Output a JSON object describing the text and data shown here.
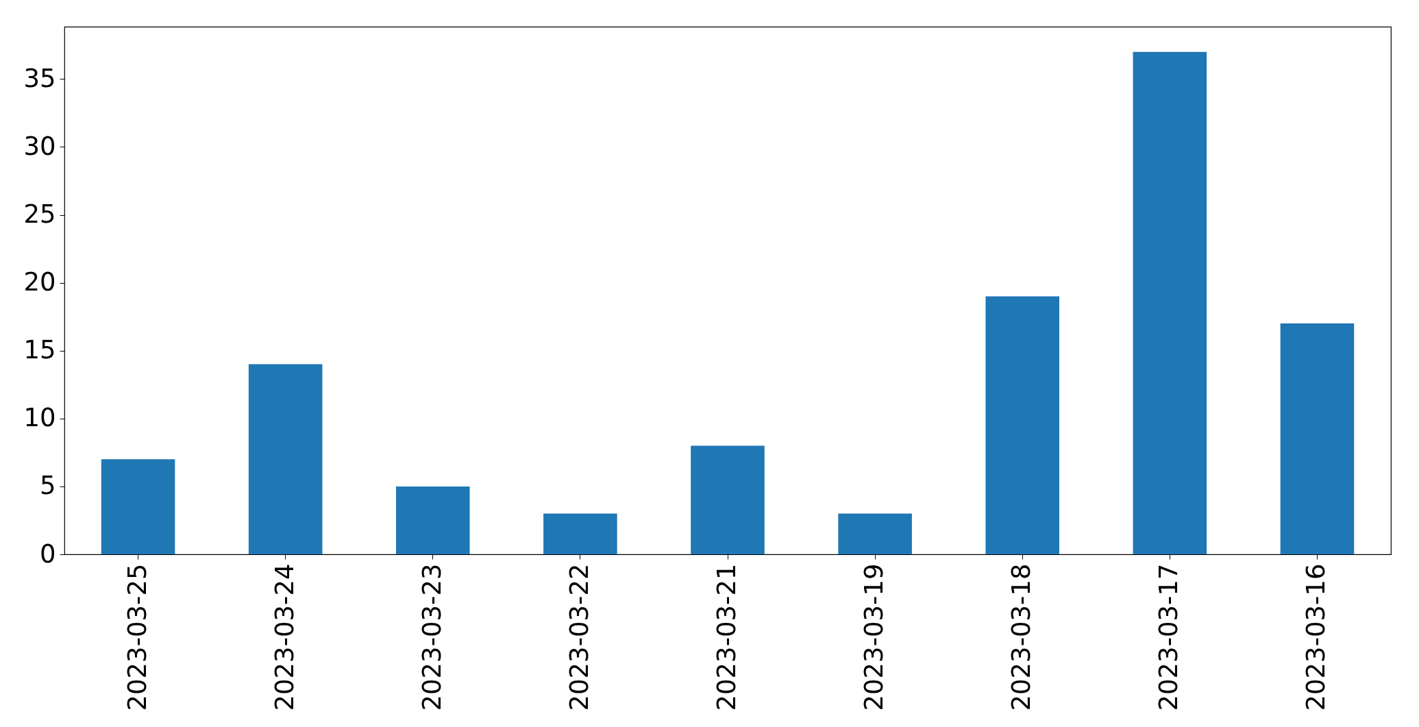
{
  "chart_data": {
    "type": "bar",
    "categories": [
      "2023-03-25",
      "2023-03-24",
      "2023-03-23",
      "2023-03-22",
      "2023-03-21",
      "2023-03-19",
      "2023-03-18",
      "2023-03-17",
      "2023-03-16"
    ],
    "values": [
      7,
      14,
      5,
      3,
      8,
      3,
      19,
      37,
      17
    ],
    "color": "#1f77b4",
    "ylim": [
      0,
      38.85
    ],
    "yticks": [
      0,
      5,
      10,
      15,
      20,
      25,
      30,
      35
    ],
    "grid": false
  }
}
